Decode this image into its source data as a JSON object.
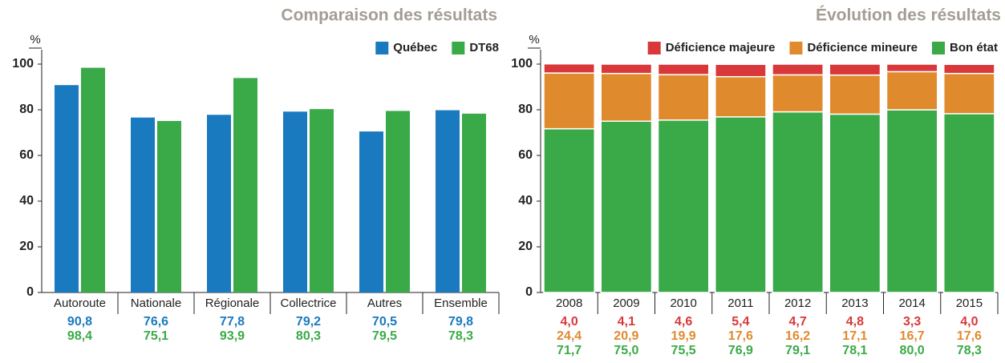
{
  "chart_data": [
    {
      "type": "bar",
      "title": "Comparaison des résultats",
      "ylabel": "%",
      "categories": [
        "Autoroute",
        "Nationale",
        "Régionale",
        "Collectrice",
        "Autres",
        "Ensemble"
      ],
      "series": [
        {
          "name": "Québec",
          "color": "#1a7abf",
          "values": [
            90.8,
            76.6,
            77.8,
            79.2,
            70.5,
            79.8
          ],
          "value_labels": [
            "90,8",
            "76,6",
            "77,8",
            "79,2",
            "70,5",
            "79,8"
          ]
        },
        {
          "name": "DT68",
          "color": "#3aaa48",
          "values": [
            98.4,
            75.1,
            93.9,
            80.3,
            79.5,
            78.3
          ],
          "value_labels": [
            "98,4",
            "75,1",
            "93,9",
            "80,3",
            "79,5",
            "78,3"
          ]
        }
      ],
      "ylim": [
        0,
        100
      ],
      "yticks": [
        0,
        20,
        40,
        60,
        80,
        100
      ],
      "grid": false
    },
    {
      "type": "stacked_bar",
      "title": "Évolution des résultats",
      "ylabel": "%",
      "categories": [
        "2008",
        "2009",
        "2010",
        "2011",
        "2012",
        "2013",
        "2014",
        "2015"
      ],
      "series": [
        {
          "name": "Déficience majeure",
          "color": "#d9383a",
          "values": [
            4.0,
            4.1,
            4.6,
            5.4,
            4.7,
            4.8,
            3.3,
            4.0
          ],
          "value_labels": [
            "4,0",
            "4,1",
            "4,6",
            "5,4",
            "4,7",
            "4,8",
            "3,3",
            "4,0"
          ]
        },
        {
          "name": "Déficience mineure",
          "color": "#e08a2e",
          "values": [
            24.4,
            20.9,
            19.9,
            17.6,
            16.2,
            17.1,
            16.7,
            17.6
          ],
          "value_labels": [
            "24,4",
            "20,9",
            "19,9",
            "17,6",
            "16,2",
            "17,1",
            "16,7",
            "17,6"
          ]
        },
        {
          "name": "Bon état",
          "color": "#3aaa48",
          "values": [
            71.7,
            75.0,
            75.5,
            76.9,
            79.1,
            78.1,
            80.0,
            78.3
          ],
          "value_labels": [
            "71,7",
            "75,0",
            "75,5",
            "76,9",
            "79,1",
            "78,1",
            "80,0",
            "78,3"
          ]
        }
      ],
      "ylim": [
        0,
        100
      ],
      "yticks": [
        0,
        20,
        40,
        60,
        80,
        100
      ],
      "grid": false
    }
  ]
}
